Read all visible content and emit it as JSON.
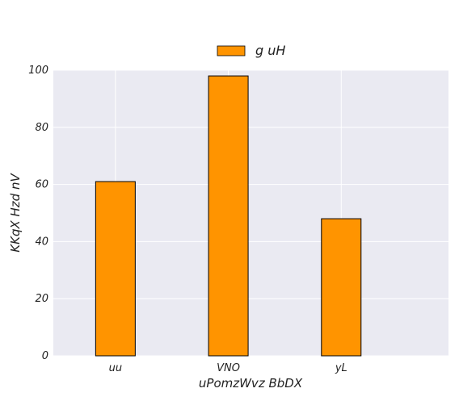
{
  "chart_data": {
    "type": "bar",
    "categories": [
      "uu",
      "VNO",
      "yL"
    ],
    "series": [
      {
        "name": "g uH",
        "values": [
          61,
          98,
          48
        ],
        "color": "#ff9400"
      }
    ],
    "xlabel": "uPomzWvz BbDX",
    "ylabel": "KKqX Hzd nV",
    "ylim": [
      0,
      100
    ],
    "yticks": [
      0,
      20,
      40,
      60,
      80,
      100
    ],
    "grid": true,
    "legend_position": "top-center",
    "background_color": "#eaeaf2",
    "grid_color": "#ffffff",
    "bar_edge_color": "#000000"
  }
}
